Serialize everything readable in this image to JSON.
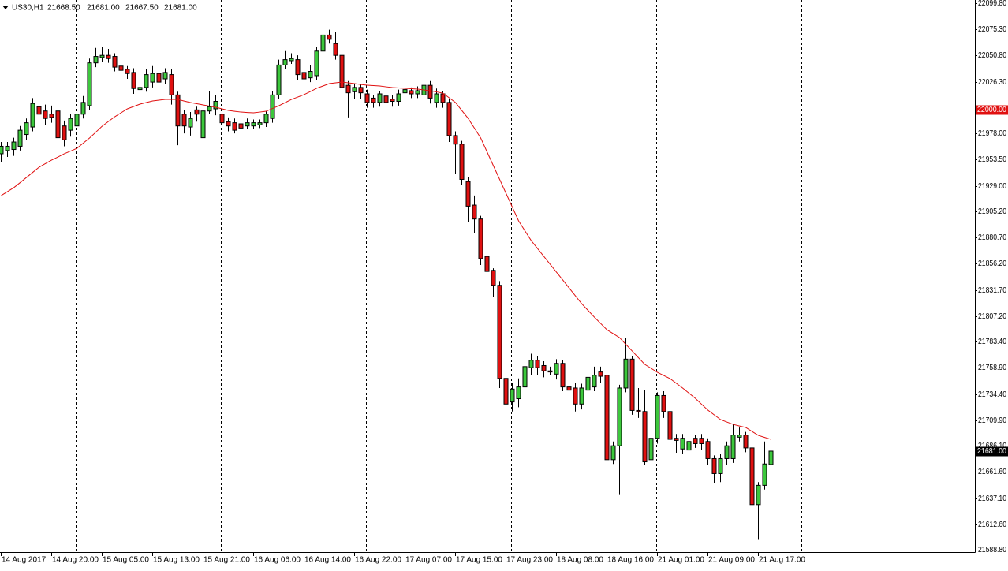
{
  "chart_data": {
    "type": "candlestick",
    "header": {
      "symbol": "US30,H1",
      "ohlc": [
        "21668.50",
        "21681.00",
        "21667.50",
        "21681.00"
      ]
    },
    "categories": [
      "14 Aug 2017",
      null,
      null,
      null,
      null,
      null,
      null,
      null,
      "14 Aug 20:00",
      null,
      null,
      null,
      null,
      null,
      null,
      null,
      "15 Aug 05:00",
      null,
      null,
      null,
      null,
      null,
      null,
      null,
      "15 Aug 13:00",
      null,
      null,
      null,
      null,
      null,
      null,
      null,
      "15 Aug 21:00",
      null,
      null,
      null,
      null,
      null,
      null,
      null,
      "16 Aug 06:00",
      null,
      null,
      null,
      null,
      null,
      null,
      null,
      "16 Aug 14:00",
      null,
      null,
      null,
      null,
      null,
      null,
      null,
      "16 Aug 22:00",
      null,
      null,
      null,
      null,
      null,
      null,
      null,
      "17 Aug 07:00",
      null,
      null,
      null,
      null,
      null,
      null,
      null,
      "17 Aug 15:00",
      null,
      null,
      null,
      null,
      null,
      null,
      null,
      "17 Aug 23:00",
      null,
      null,
      null,
      null,
      null,
      null,
      null,
      "18 Aug 08:00",
      null,
      null,
      null,
      null,
      null,
      null,
      null,
      "18 Aug 16:00",
      null,
      null,
      null,
      null,
      null,
      null,
      null,
      "21 Aug 01:00",
      null,
      null,
      null,
      null,
      null,
      null,
      null,
      "21 Aug 09:00",
      null,
      null,
      null,
      null,
      null,
      null,
      null,
      "21 Aug 17:00",
      null,
      null
    ],
    "open": [
      21959,
      21962,
      21963,
      21966,
      21977,
      21984,
      22003,
      21999,
      21996,
      21999,
      21985,
      21981,
      21985,
      21996,
      22004,
      22044,
      22049,
      22051,
      22050,
      22041,
      22038,
      22035,
      22019,
      22021,
      22026,
      22034,
      22029,
      22033,
      22014,
      21996,
      21984,
      22000,
      21974,
      21999,
      22001,
      21996,
      21989,
      21988,
      21987,
      21985,
      21985,
      21986,
      21988,
      21992,
      22014,
      22042,
      22046,
      22047,
      22035,
      22030,
      22032,
      22055,
      22070,
      22062,
      22051,
      22023,
      22017,
      22021,
      22015,
      22011,
      22007,
      22013,
      22010,
      22008,
      22016,
      22018,
      22015,
      22014,
      22023,
      22007,
      22015,
      22007,
      21976,
      21968,
      21933,
      21911,
      21898,
      21863,
      21850,
      21836,
      21749,
      21727,
      21730,
      21741,
      21759,
      21766,
      21761,
      21756,
      21753,
      21763,
      21741,
      21740,
      21725,
      21738,
      21741,
      21755,
      21752,
      21673,
      21686,
      21740,
      21767,
      21719,
      21718,
      21673,
      21693,
      21733,
      21718,
      21693,
      21683,
      21682,
      21693,
      21693,
      21690,
      21674,
      21660,
      21674,
      21674,
      21694,
      21696,
      21684,
      21631,
      21649,
      21668.5
    ],
    "high": [
      21970,
      21970,
      21974,
      21985,
      21992,
      22011,
      22010,
      22005,
      22004,
      22006,
      21990,
      21996,
      22001,
      22013,
      22048,
      22058,
      22059,
      22057,
      22053,
      22045,
      22041,
      22039,
      22025,
      22038,
      22041,
      22040,
      22039,
      22038,
      22017,
      22000,
      21998,
      22003,
      22003,
      22018,
      22014,
      22002,
      21993,
      21992,
      21990,
      21992,
      21991,
      21991,
      21999,
      22018,
      22047,
      22055,
      22053,
      22051,
      22039,
      22042,
      22059,
      22074,
      22075,
      22073,
      22055,
      22027,
      22025,
      22024,
      22019,
      22014,
      22018,
      22016,
      22014,
      22019,
      22022,
      22021,
      22022,
      22034,
      22027,
      22020,
      22018,
      22010,
      21980,
      21971,
      21937,
      21920,
      21901,
      21866,
      21852,
      21840,
      21756,
      21745,
      21749,
      21765,
      21772,
      21770,
      21765,
      21760,
      21767,
      21766,
      21745,
      21745,
      21744,
      21756,
      21760,
      21760,
      21756,
      21690,
      21743,
      21787,
      21770,
      21740,
      21738,
      21697,
      21736,
      21737,
      21721,
      21697,
      21697,
      21694,
      21696,
      21697,
      21693,
      21677,
      21678,
      21690,
      21706,
      21703,
      21699,
      21688,
      21652,
      21690,
      21681
    ],
    "low": [
      21951,
      21956,
      21957,
      21962,
      21972,
      21980,
      21992,
      21986,
      21988,
      21968,
      21966,
      21975,
      21980,
      21992,
      22000,
      22040,
      22045,
      22044,
      22036,
      22032,
      22029,
      22015,
      22014,
      22017,
      22021,
      22021,
      22024,
      22005,
      21967,
      21978,
      21976,
      21989,
      21970,
      21996,
      21995,
      21983,
      21980,
      21978,
      21979,
      21982,
      21982,
      21983,
      21984,
      21988,
      22010,
      22038,
      22043,
      22028,
      22025,
      22026,
      22028,
      22050,
      22062,
      22047,
      22006,
      21993,
      22010,
      22010,
      22002,
      22002,
      22003,
      22000,
      22003,
      22004,
      22012,
      22011,
      22011,
      22010,
      22006,
      22002,
      22002,
      21970,
      21940,
      21930,
      21895,
      21885,
      21855,
      21843,
      21825,
      21740,
      21705,
      21718,
      21722,
      21720,
      21752,
      21752,
      21750,
      21752,
      21748,
      21737,
      21730,
      21718,
      21720,
      21733,
      21737,
      21745,
      21670,
      21669,
      21640,
      21736,
      21715,
      21712,
      21668,
      21668,
      21688,
      21712,
      21684,
      21679,
      21678,
      21677,
      21684,
      21682,
      21668,
      21651,
      21652,
      21668,
      21670,
      21690,
      21680,
      21625,
      21598,
      21645,
      21667.5
    ],
    "close": [
      21966,
      21966,
      21970,
      21981,
      21988,
      22006,
      21996,
      21992,
      21993,
      21974,
      21972,
      21992,
      21996,
      22007,
      22044,
      22050,
      22051,
      22048,
      22040,
      22037,
      22034,
      22020,
      22021,
      22033,
      22034,
      22026,
      22035,
      22014,
      21985,
      21985,
      21992,
      21996,
      21999,
      22003,
      22008,
      21988,
      21985,
      21981,
      21983,
      21988,
      21988,
      21988,
      21996,
      22014,
      22042,
      22047,
      22048,
      22033,
      22029,
      22036,
      22055,
      22070,
      22066,
      22051,
      22021,
      22016,
      22021,
      22016,
      22007,
      22007,
      22015,
      22007,
      22008,
      22015,
      22019,
      22015,
      22018,
      22023,
      22011,
      22015,
      22007,
      21976,
      21968,
      21935,
      21910,
      21898,
      21861,
      21849,
      21836,
      21749,
      21725,
      21739,
      21741,
      21760,
      21766,
      21759,
      21756,
      21755,
      21763,
      21741,
      21738,
      21725,
      21740,
      21750,
      21752,
      21751,
      21673,
      21686,
      21740,
      21767,
      21719,
      21718,
      21671,
      21693,
      21733,
      21718,
      21692,
      21691,
      21693,
      21690,
      21688,
      21688,
      21674,
      21660,
      21674,
      21686,
      21696,
      21696,
      21684,
      21631,
      21649,
      21669,
      21681
    ],
    "ma": [
      21919.9,
      21923.6,
      21927.3,
      21932.0,
      21936.8,
      21941.6,
      21946.4,
      21949.8,
      21953.1,
      21956.0,
      21959.0,
      21961.5,
      21964.1,
      21968.9,
      21973.7,
      21979.2,
      21984.8,
      21989.2,
      21993.6,
      21997.3,
      22001.0,
      22003.2,
      22005.4,
      22006.9,
      22008.4,
      22009.1,
      22009.8,
      22009.8,
      22009.8,
      22008.3,
      22006.9,
      22005.8,
      22004.7,
      22003.6,
      22002.5,
      22001.0,
      21999.5,
      21998.7,
      21998.0,
      21997.6,
      21997.3,
      21998.0,
      21998.8,
      22001.3,
      22003.9,
      22006.8,
      22009.8,
      22012.0,
      22014.3,
      22017.2,
      22020.2,
      22022.4,
      22024.6,
      22025.3,
      22026.1,
      22025.3,
      22024.6,
      22023.8,
      22023.1,
      22022.7,
      22022.4,
      22021.6,
      22020.9,
      22020.5,
      22020.2,
      22019.8,
      22019.4,
      22018.7,
      22017.9,
      22016.8,
      22015.7,
      22011.3,
      22006.9,
      21999.5,
      21992.1,
      21982.9,
      21973.7,
      21960.8,
      21947.9,
      21935.0,
      21922.1,
      21909.2,
      21896.3,
      21887.0,
      21877.8,
      21870.4,
      21863.1,
      21855.7,
      21848.3,
      21841.0,
      21833.6,
      21826.2,
      21818.8,
      21812.6,
      21806.3,
      21800.4,
      21794.5,
      21790.8,
      21787.1,
      21780.8,
      21774.6,
      21768.3,
      21762.1,
      21758.4,
      21754.7,
      21751.7,
      21748.8,
      21744.4,
      21740.0,
      21735.2,
      21730.4,
      21724.8,
      21719.3,
      21714.9,
      21710.5,
      21708.2,
      21706.0,
      21704.5,
      21703.1,
      21699.4,
      21695.7,
      21693.8,
      21692.0
    ],
    "up_color": "#3cc83c",
    "down_color": "#e01010",
    "ma_color": "#e01010",
    "ylim": [
      21586.6,
      22102.75
    ],
    "yticks": [
      {
        "value": 22099.8,
        "label": "22099.80"
      },
      {
        "value": 22075.3,
        "label": "22075.30"
      },
      {
        "value": 22050.8,
        "label": "22050.80"
      },
      {
        "value": 22026.3,
        "label": "22026.30"
      },
      {
        "value": 21978.0,
        "label": "21978.00"
      },
      {
        "value": 21953.5,
        "label": "21953.50"
      },
      {
        "value": 21929.0,
        "label": "21929.00"
      },
      {
        "value": 21905.2,
        "label": "21905.20"
      },
      {
        "value": 21880.7,
        "label": "21880.70"
      },
      {
        "value": 21856.2,
        "label": "21856.20"
      },
      {
        "value": 21831.7,
        "label": "21831.70"
      },
      {
        "value": 21807.2,
        "label": "21807.20"
      },
      {
        "value": 21783.4,
        "label": "21783.40"
      },
      {
        "value": 21758.9,
        "label": "21758.90"
      },
      {
        "value": 21734.4,
        "label": "21734.40"
      },
      {
        "value": 21709.9,
        "label": "21709.90"
      },
      {
        "value": 21686.1,
        "label": "21686.10"
      },
      {
        "value": 21661.6,
        "label": "21661.60"
      },
      {
        "value": 21637.1,
        "label": "21637.10"
      },
      {
        "value": 21612.6,
        "label": "21612.60"
      },
      {
        "value": 21588.8,
        "label": "21588.80"
      }
    ],
    "hline": {
      "value": 22000,
      "label": "22000.00",
      "color": "#e01010"
    },
    "current_price": {
      "value": 21681,
      "label": "21681.00"
    }
  }
}
